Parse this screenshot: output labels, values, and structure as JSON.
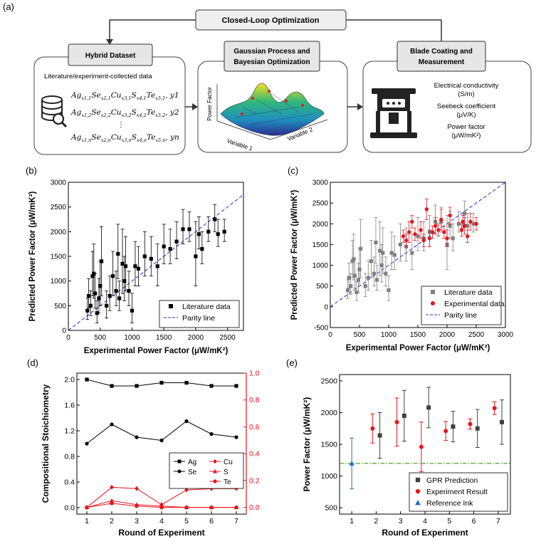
{
  "figure": {
    "panel_a": {
      "label": "(a)",
      "loop_title": "Closed-Loop Optimization",
      "hybrid_title": "Hybrid Dataset",
      "gp_title_1": "Gaussian Process and",
      "gp_title_2": "Bayesian Optimization",
      "blade_title_1": "Blade Coating and",
      "blade_title_2": "Measurement",
      "lit_text": "Literature/experiment-collected data",
      "formula_rows": [
        {
          "prefix": "Ag",
          "sub1": "x1,1",
          "t2": "Se",
          "sub2": "x2,1",
          "t3": "Cu",
          "sub3": "x3,1",
          "t4": "S",
          "sub4": "x4,1",
          "t5": "Te",
          "sub5": "x5,1",
          "y": "y1"
        },
        {
          "prefix": "Ag",
          "sub1": "x1,2",
          "t2": "Se",
          "sub2": "x2,2",
          "t3": "Cu",
          "sub3": "x3,2",
          "t4": "S",
          "sub4": "x4,2",
          "t5": "Te",
          "sub5": "x5,2",
          "y": "y2"
        },
        {
          "prefix": "Ag",
          "sub1": "x1,n",
          "t2": "Se",
          "sub2": "x2,n",
          "t3": "Cu",
          "sub3": "x3,n",
          "t4": "S",
          "sub4": "x4,n",
          "t5": "Te",
          "sub5": "x5,n",
          "y": "yn"
        }
      ],
      "surface_zlabel": "Power Factor",
      "surface_xlabel": "Variable 1",
      "surface_ylabel": "Variable 2",
      "meas_1a": "Electrical conductivity",
      "meas_1b": "(S/m)",
      "meas_2a": "Seebeck coefficient",
      "meas_2b": "(μV/K)",
      "meas_3a": "Power factor",
      "meas_3b": "(μW/mK²)"
    }
  },
  "chart_data": [
    {
      "id": "b",
      "label": "(b)",
      "type": "scatter",
      "xlabel": "Experimental Power Factor (μW/mK²)",
      "ylabel": "Predicted Power Factor (μW/mK²)",
      "xlim": [
        0,
        2750
      ],
      "ylim": [
        0,
        3000
      ],
      "xticks": [
        0,
        500,
        1000,
        1500,
        2000,
        2500
      ],
      "yticks": [
        0,
        500,
        1000,
        1500,
        2000,
        2500,
        3000
      ],
      "legend": [
        "Literature data",
        "Parity line"
      ],
      "series": [
        {
          "name": "Literature data",
          "marker": "square",
          "color": "#000000",
          "points": [
            [
              300,
              400,
              180,
              250
            ],
            [
              320,
              700,
              250,
              350
            ],
            [
              350,
              500,
              200,
              300
            ],
            [
              380,
              1100,
              400,
              500
            ],
            [
              400,
              1150,
              500,
              600
            ],
            [
              420,
              750,
              300,
              400
            ],
            [
              450,
              350,
              200,
              250
            ],
            [
              480,
              650,
              300,
              400
            ],
            [
              500,
              900,
              400,
              500
            ],
            [
              520,
              1400,
              700,
              700
            ],
            [
              600,
              500,
              250,
              300
            ],
            [
              650,
              700,
              300,
              400
            ],
            [
              700,
              1100,
              400,
              500
            ],
            [
              750,
              800,
              300,
              400
            ],
            [
              780,
              1550,
              500,
              600
            ],
            [
              800,
              650,
              250,
              350
            ],
            [
              850,
              1350,
              600,
              700
            ],
            [
              880,
              1000,
              400,
              500
            ],
            [
              900,
              1300,
              500,
              600
            ],
            [
              950,
              800,
              300,
              400
            ],
            [
              1000,
              400,
              250,
              350
            ],
            [
              1050,
              1300,
              400,
              500
            ],
            [
              1100,
              1250,
              350,
              450
            ],
            [
              1200,
              1500,
              400,
              500
            ],
            [
              1300,
              1450,
              350,
              450
            ],
            [
              1400,
              1300,
              400,
              450
            ],
            [
              1500,
              1700,
              350,
              450
            ],
            [
              1600,
              1650,
              300,
              400
            ],
            [
              1700,
              1800,
              350,
              400
            ],
            [
              1800,
              2050,
              300,
              400
            ],
            [
              1900,
              2050,
              250,
              350
            ],
            [
              2000,
              1500,
              600,
              700
            ],
            [
              2050,
              1950,
              300,
              350
            ],
            [
              2100,
              1650,
              300,
              350
            ],
            [
              2200,
              2000,
              200,
              300
            ],
            [
              2300,
              2250,
              250,
              300
            ],
            [
              2350,
              1950,
              250,
              300
            ],
            [
              2450,
              2000,
              200,
              250
            ]
          ]
        }
      ]
    },
    {
      "id": "c",
      "label": "(c)",
      "type": "scatter",
      "xlabel": "Experimental Power Factor (μW/mK²)",
      "ylabel": "Predicted Power Factor (μW/mK²)",
      "xlim": [
        0,
        3000
      ],
      "ylim": [
        -500,
        3000
      ],
      "xticks": [
        0,
        500,
        1000,
        1500,
        2000,
        2500,
        3000
      ],
      "yticks": [
        -500,
        0,
        500,
        1000,
        1500,
        2000,
        2500,
        3000
      ],
      "legend": [
        "Literature data",
        "Experimental data",
        "Parity line"
      ],
      "series": [
        {
          "name": "Literature data",
          "marker": "square",
          "color": "#808080",
          "points": [
            [
              300,
              400,
              200,
              250
            ],
            [
              320,
              700,
              250,
              350
            ],
            [
              350,
              500,
              200,
              300
            ],
            [
              380,
              1100,
              400,
              500
            ],
            [
              400,
              1150,
              500,
              600
            ],
            [
              420,
              750,
              300,
              400
            ],
            [
              450,
              350,
              200,
              250
            ],
            [
              480,
              650,
              300,
              400
            ],
            [
              500,
              900,
              400,
              500
            ],
            [
              520,
              1400,
              700,
              700
            ],
            [
              600,
              500,
              250,
              300
            ],
            [
              650,
              700,
              300,
              400
            ],
            [
              700,
              1100,
              400,
              500
            ],
            [
              750,
              800,
              300,
              400
            ],
            [
              780,
              1550,
              500,
              600
            ],
            [
              800,
              650,
              250,
              350
            ],
            [
              850,
              1350,
              600,
              700
            ],
            [
              880,
              1000,
              400,
              500
            ],
            [
              900,
              1300,
              500,
              600
            ],
            [
              950,
              800,
              300,
              400
            ],
            [
              1000,
              400,
              250,
              350
            ],
            [
              1050,
              1300,
              400,
              500
            ],
            [
              1100,
              1250,
              350,
              450
            ],
            [
              1200,
              1500,
              400,
              500
            ],
            [
              1300,
              1450,
              350,
              450
            ],
            [
              1400,
              1300,
              400,
              450
            ],
            [
              1500,
              1700,
              350,
              450
            ],
            [
              1600,
              1650,
              300,
              400
            ],
            [
              1700,
              1800,
              350,
              400
            ],
            [
              1800,
              2050,
              300,
              400
            ],
            [
              1900,
              2050,
              250,
              350
            ],
            [
              2000,
              1500,
              600,
              700
            ],
            [
              2050,
              1950,
              300,
              350
            ],
            [
              2100,
              1650,
              300,
              350
            ],
            [
              2200,
              2000,
              200,
              300
            ],
            [
              2300,
              2250,
              250,
              300
            ],
            [
              2350,
              1950,
              250,
              300
            ],
            [
              2450,
              2000,
              200,
              250
            ]
          ]
        },
        {
          "name": "Experimental data",
          "marker": "circle",
          "color": "#e8141b",
          "points": [
            [
              1250,
              1700,
              150,
              150
            ],
            [
              1300,
              1600,
              150,
              150
            ],
            [
              1350,
              1800,
              250,
              250
            ],
            [
              1400,
              2050,
              150,
              150
            ],
            [
              1450,
              1750,
              150,
              150
            ],
            [
              1550,
              1850,
              200,
              200
            ],
            [
              1600,
              1600,
              150,
              150
            ],
            [
              1650,
              2350,
              250,
              250
            ],
            [
              1700,
              1650,
              200,
              200
            ],
            [
              1750,
              1800,
              150,
              150
            ],
            [
              1800,
              1950,
              200,
              200
            ],
            [
              1850,
              1850,
              150,
              150
            ],
            [
              1900,
              2100,
              250,
              250
            ],
            [
              1950,
              1800,
              150,
              150
            ],
            [
              2000,
              1650,
              200,
              200
            ],
            [
              2050,
              2200,
              200,
              200
            ],
            [
              2250,
              1850,
              150,
              150
            ],
            [
              2300,
              1950,
              200,
              200
            ],
            [
              2350,
              1700,
              150,
              150
            ],
            [
              2400,
              2050,
              200,
              200
            ],
            [
              2500,
              2000,
              150,
              150
            ],
            [
              2270,
              2050,
              150,
              150
            ]
          ]
        }
      ]
    },
    {
      "id": "d",
      "label": "(d)",
      "type": "line",
      "xlabel": "Round of Experiment",
      "ylabel": "Compositional Stoichiometry",
      "categories": [
        1,
        2,
        3,
        4,
        5,
        6,
        7
      ],
      "ylim_left": [
        -0.1,
        2.1
      ],
      "ylim_right": [
        -0.05,
        1.0
      ],
      "yticks_left": [
        0.0,
        0.4,
        0.8,
        1.2,
        1.6,
        2.0
      ],
      "yticks_right": [
        0.0,
        0.2,
        0.4,
        0.6,
        0.8,
        1.0
      ],
      "series": [
        {
          "name": "Ag",
          "axis": "left",
          "marker": "square",
          "color": "#000000",
          "values": [
            2.0,
            1.9,
            1.9,
            1.95,
            1.95,
            1.9,
            1.9
          ]
        },
        {
          "name": "Se",
          "axis": "left",
          "marker": "circle",
          "color": "#000000",
          "values": [
            1.0,
            1.3,
            1.1,
            1.05,
            1.35,
            1.15,
            1.1
          ]
        },
        {
          "name": "Cu",
          "axis": "right",
          "marker": "diamond",
          "color": "#e8141b",
          "values": [
            0.0,
            0.15,
            0.14,
            0.02,
            0.13,
            0.14,
            0.14
          ]
        },
        {
          "name": "S",
          "axis": "right",
          "marker": "triangle",
          "color": "#e8141b",
          "values": [
            0.0,
            0.05,
            0.02,
            0.01,
            0.0,
            0.0,
            0.0
          ]
        },
        {
          "name": "Te",
          "axis": "right",
          "marker": "pentagon",
          "color": "#e8141b",
          "values": [
            0.0,
            0.03,
            0.01,
            0.0,
            0.0,
            0.0,
            0.0
          ]
        }
      ]
    },
    {
      "id": "e",
      "label": "(e)",
      "type": "scatter",
      "xlabel": "Round of Experiment",
      "ylabel": "Power Factor (μW/mK²)",
      "xlim": [
        0.5,
        7.5
      ],
      "ylim": [
        400,
        2600
      ],
      "xticks": [
        1,
        2,
        3,
        4,
        5,
        6,
        7
      ],
      "yticks": [
        500,
        1000,
        1500,
        2000,
        2500
      ],
      "reference_line": 1200,
      "legend": [
        "GPR Prediction",
        "Experiment Result",
        "Reference Ink"
      ],
      "series": [
        {
          "name": "GPR Prediction",
          "marker": "square",
          "color": "#404040",
          "points": [
            [
              2,
              1640,
              360
            ],
            [
              3,
              1950,
              400
            ],
            [
              4,
              2080,
              320
            ],
            [
              5,
              1780,
              240
            ],
            [
              6,
              1750,
              300
            ],
            [
              7,
              1850,
              350
            ]
          ],
          "offset": 0.15
        },
        {
          "name": "Experiment Result",
          "marker": "circle",
          "color": "#e8141b",
          "points": [
            [
              2,
              1750,
              230
            ],
            [
              3,
              1850,
              380
            ],
            [
              4,
              1460,
              390
            ],
            [
              5,
              1710,
              150
            ],
            [
              6,
              1820,
              80
            ],
            [
              7,
              2070,
              100
            ]
          ],
          "offset": -0.15
        },
        {
          "name": "Reference Ink",
          "marker": "triangle",
          "color": "#1f6fd6",
          "points": [
            [
              1,
              1200,
              400
            ]
          ],
          "offset": 0
        }
      ]
    }
  ]
}
